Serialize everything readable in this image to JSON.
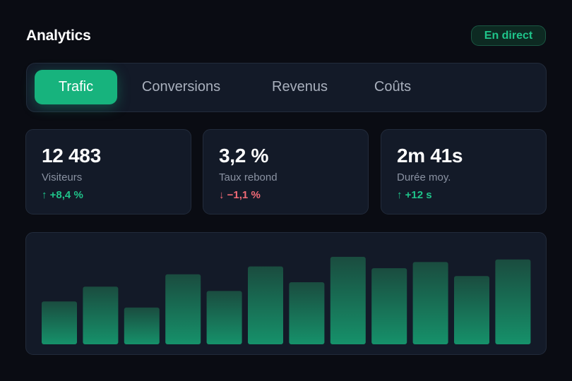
{
  "header": {
    "title": "Analytics",
    "status_badge": "En direct"
  },
  "tabs": [
    {
      "label": "Trafic",
      "active": true
    },
    {
      "label": "Conversions",
      "active": false
    },
    {
      "label": "Revenus",
      "active": false
    },
    {
      "label": "Coûts",
      "active": false
    }
  ],
  "metrics": [
    {
      "value": "12 483",
      "label": "Visiteurs",
      "delta": "↑ +8,4 %",
      "trend": "up"
    },
    {
      "value": "3,2 %",
      "label": "Taux rebond",
      "delta": "↓ −1,1 %",
      "trend": "down"
    },
    {
      "value": "2m 41s",
      "label": "Durée moy.",
      "delta": "↑ +12 s",
      "trend": "up"
    }
  ],
  "colors": {
    "accent": "#17b37d",
    "positive": "#1fc48a",
    "negative": "#f06a76",
    "background": "#0a0c13",
    "panel": "#131a28"
  },
  "chart_data": {
    "type": "bar",
    "title": "",
    "xlabel": "",
    "ylabel": "",
    "ylim": [
      0,
      100
    ],
    "grid": false,
    "values": [
      49,
      66,
      42,
      80,
      61,
      89,
      71,
      100,
      87,
      94,
      78,
      97
    ]
  }
}
